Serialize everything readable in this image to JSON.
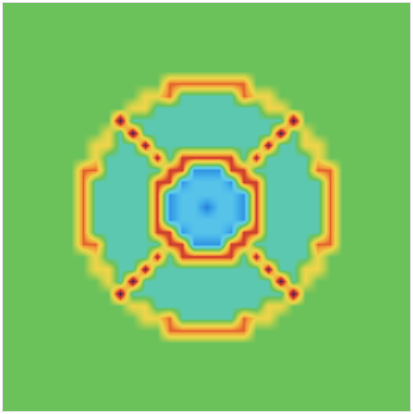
{
  "chart_data": {
    "type": "heatmap",
    "tick_labels": false,
    "xlim": [
      -0.5,
      32.5
    ],
    "ylim": [
      -0.5,
      32.5
    ],
    "zlim": [
      0,
      1
    ],
    "z": [
      [
        0.5,
        0.5,
        0.5,
        0.5,
        0.5,
        0.5,
        0.5,
        0.5,
        0.5,
        0.5,
        0.5,
        0.5,
        0.5,
        0.5,
        0.5,
        0.5,
        0.5,
        0.5,
        0.5,
        0.5,
        0.5,
        0.5,
        0.5,
        0.5,
        0.5,
        0.5,
        0.5,
        0.5,
        0.5,
        0.5,
        0.5,
        0.5,
        0.5
      ],
      [
        0.5,
        0.5,
        0.5,
        0.5,
        0.5,
        0.5,
        0.5,
        0.5,
        0.5,
        0.5,
        0.5,
        0.5,
        0.5,
        0.5,
        0.5,
        0.5,
        0.5,
        0.5,
        0.5,
        0.5,
        0.5,
        0.5,
        0.5,
        0.5,
        0.5,
        0.5,
        0.5,
        0.5,
        0.5,
        0.5,
        0.5,
        0.5,
        0.5
      ],
      [
        0.5,
        0.5,
        0.5,
        0.5,
        0.5,
        0.5,
        0.5,
        0.5,
        0.5,
        0.5,
        0.5,
        0.5,
        0.5,
        0.5,
        0.5,
        0.5,
        0.5,
        0.5,
        0.5,
        0.5,
        0.5,
        0.5,
        0.5,
        0.5,
        0.5,
        0.5,
        0.5,
        0.5,
        0.5,
        0.5,
        0.5,
        0.5,
        0.5
      ],
      [
        0.5,
        0.5,
        0.5,
        0.5,
        0.5,
        0.5,
        0.5,
        0.5,
        0.5,
        0.5,
        0.5,
        0.5,
        0.5,
        0.5,
        0.5,
        0.5,
        0.5,
        0.5,
        0.5,
        0.5,
        0.5,
        0.5,
        0.5,
        0.5,
        0.5,
        0.5,
        0.5,
        0.5,
        0.5,
        0.5,
        0.5,
        0.5,
        0.5
      ],
      [
        0.5,
        0.5,
        0.5,
        0.5,
        0.5,
        0.5,
        0.5,
        0.5,
        0.5,
        0.5,
        0.5,
        0.5,
        0.5,
        0.5,
        0.5,
        0.5,
        0.5,
        0.5,
        0.5,
        0.5,
        0.5,
        0.5,
        0.5,
        0.5,
        0.5,
        0.5,
        0.5,
        0.5,
        0.5,
        0.5,
        0.5,
        0.5,
        0.5
      ],
      [
        0.5,
        0.5,
        0.5,
        0.5,
        0.5,
        0.5,
        0.5,
        0.5,
        0.5,
        0.5,
        0.5,
        0.5,
        0.5,
        0.5,
        0.5,
        0.5,
        0.5,
        0.5,
        0.5,
        0.5,
        0.5,
        0.5,
        0.5,
        0.5,
        0.5,
        0.5,
        0.5,
        0.5,
        0.5,
        0.5,
        0.5,
        0.5,
        0.5
      ],
      [
        0.5,
        0.5,
        0.5,
        0.5,
        0.5,
        0.5,
        0.5,
        0.5,
        0.5,
        0.5,
        0.5,
        0.5,
        0.5,
        0.78,
        0.78,
        0.78,
        0.78,
        0.78,
        0.78,
        0.78,
        0.5,
        0.5,
        0.5,
        0.5,
        0.5,
        0.5,
        0.5,
        0.5,
        0.5,
        0.5,
        0.5,
        0.5,
        0.5
      ],
      [
        0.5,
        0.5,
        0.5,
        0.5,
        0.5,
        0.5,
        0.5,
        0.5,
        0.5,
        0.5,
        0.5,
        0.66,
        0.66,
        0.78,
        0.43,
        0.43,
        0.43,
        0.43,
        0.43,
        0.78,
        0.66,
        0.66,
        0.5,
        0.5,
        0.5,
        0.5,
        0.5,
        0.5,
        0.5,
        0.5,
        0.5,
        0.5,
        0.5
      ],
      [
        0.5,
        0.5,
        0.5,
        0.5,
        0.5,
        0.5,
        0.5,
        0.5,
        0.5,
        0.5,
        0.66,
        0.66,
        0.43,
        0.43,
        0.43,
        0.43,
        0.43,
        0.43,
        0.43,
        0.43,
        0.43,
        0.66,
        0.66,
        0.5,
        0.5,
        0.5,
        0.5,
        0.5,
        0.5,
        0.5,
        0.5,
        0.5,
        0.5
      ],
      [
        0.5,
        0.5,
        0.5,
        0.5,
        0.5,
        0.5,
        0.5,
        0.5,
        0.5,
        0.97,
        0.43,
        0.43,
        0.43,
        0.43,
        0.43,
        0.43,
        0.43,
        0.43,
        0.43,
        0.43,
        0.43,
        0.43,
        0.43,
        0.97,
        0.5,
        0.5,
        0.5,
        0.5,
        0.5,
        0.5,
        0.5,
        0.5,
        0.5
      ],
      [
        0.5,
        0.5,
        0.5,
        0.5,
        0.5,
        0.5,
        0.5,
        0.5,
        0.66,
        0.43,
        0.97,
        0.43,
        0.43,
        0.43,
        0.43,
        0.43,
        0.43,
        0.43,
        0.43,
        0.43,
        0.43,
        0.43,
        0.97,
        0.43,
        0.66,
        0.5,
        0.5,
        0.5,
        0.5,
        0.5,
        0.5,
        0.5,
        0.5
      ],
      [
        0.5,
        0.5,
        0.5,
        0.5,
        0.5,
        0.5,
        0.5,
        0.66,
        0.66,
        0.43,
        0.43,
        0.93,
        0.43,
        0.43,
        0.43,
        0.43,
        0.43,
        0.43,
        0.43,
        0.43,
        0.43,
        0.93,
        0.43,
        0.43,
        0.66,
        0.66,
        0.5,
        0.5,
        0.5,
        0.5,
        0.5,
        0.5,
        0.5
      ],
      [
        0.5,
        0.5,
        0.5,
        0.5,
        0.5,
        0.5,
        0.5,
        0.66,
        0.43,
        0.43,
        0.43,
        0.43,
        0.88,
        0.43,
        0.82,
        0.82,
        0.82,
        0.82,
        0.82,
        0.43,
        0.88,
        0.43,
        0.43,
        0.43,
        0.43,
        0.66,
        0.5,
        0.5,
        0.5,
        0.5,
        0.5,
        0.5,
        0.5
      ],
      [
        0.5,
        0.5,
        0.5,
        0.5,
        0.5,
        0.5,
        0.78,
        0.78,
        0.43,
        0.43,
        0.43,
        0.43,
        0.43,
        0.82,
        0.82,
        0.24,
        0.24,
        0.24,
        0.82,
        0.82,
        0.43,
        0.43,
        0.43,
        0.43,
        0.43,
        0.78,
        0.78,
        0.5,
        0.5,
        0.5,
        0.5,
        0.5,
        0.5
      ],
      [
        0.5,
        0.5,
        0.5,
        0.5,
        0.5,
        0.5,
        0.78,
        0.43,
        0.43,
        0.43,
        0.43,
        0.43,
        0.82,
        0.82,
        0.24,
        0.33,
        0.33,
        0.33,
        0.24,
        0.82,
        0.82,
        0.43,
        0.43,
        0.43,
        0.43,
        0.43,
        0.78,
        0.5,
        0.5,
        0.5,
        0.5,
        0.5,
        0.5
      ],
      [
        0.5,
        0.5,
        0.5,
        0.5,
        0.5,
        0.5,
        0.78,
        0.43,
        0.43,
        0.43,
        0.43,
        0.43,
        0.82,
        0.24,
        0.33,
        0.33,
        0.33,
        0.33,
        0.33,
        0.24,
        0.82,
        0.43,
        0.43,
        0.43,
        0.43,
        0.43,
        0.78,
        0.5,
        0.5,
        0.5,
        0.5,
        0.5,
        0.5
      ],
      [
        0.5,
        0.5,
        0.5,
        0.5,
        0.5,
        0.5,
        0.78,
        0.43,
        0.43,
        0.43,
        0.43,
        0.43,
        0.82,
        0.24,
        0.33,
        0.33,
        0.2,
        0.33,
        0.33,
        0.24,
        0.82,
        0.43,
        0.43,
        0.43,
        0.43,
        0.43,
        0.78,
        0.5,
        0.5,
        0.5,
        0.5,
        0.5,
        0.5
      ],
      [
        0.5,
        0.5,
        0.5,
        0.5,
        0.5,
        0.5,
        0.78,
        0.43,
        0.43,
        0.43,
        0.43,
        0.43,
        0.82,
        0.24,
        0.33,
        0.33,
        0.33,
        0.33,
        0.33,
        0.24,
        0.82,
        0.43,
        0.43,
        0.43,
        0.43,
        0.43,
        0.78,
        0.5,
        0.5,
        0.5,
        0.5,
        0.5,
        0.5
      ],
      [
        0.5,
        0.5,
        0.5,
        0.5,
        0.5,
        0.5,
        0.78,
        0.43,
        0.43,
        0.43,
        0.43,
        0.43,
        0.82,
        0.82,
        0.24,
        0.33,
        0.33,
        0.33,
        0.24,
        0.82,
        0.82,
        0.43,
        0.43,
        0.43,
        0.43,
        0.43,
        0.78,
        0.5,
        0.5,
        0.5,
        0.5,
        0.5,
        0.5
      ],
      [
        0.5,
        0.5,
        0.5,
        0.5,
        0.5,
        0.5,
        0.78,
        0.78,
        0.43,
        0.43,
        0.43,
        0.43,
        0.43,
        0.82,
        0.82,
        0.24,
        0.24,
        0.24,
        0.82,
        0.82,
        0.43,
        0.43,
        0.43,
        0.43,
        0.43,
        0.78,
        0.78,
        0.5,
        0.5,
        0.5,
        0.5,
        0.5,
        0.5
      ],
      [
        0.5,
        0.5,
        0.5,
        0.5,
        0.5,
        0.5,
        0.5,
        0.66,
        0.43,
        0.43,
        0.43,
        0.43,
        0.88,
        0.43,
        0.82,
        0.82,
        0.82,
        0.82,
        0.82,
        0.43,
        0.88,
        0.43,
        0.43,
        0.43,
        0.43,
        0.66,
        0.5,
        0.5,
        0.5,
        0.5,
        0.5,
        0.5,
        0.5
      ],
      [
        0.5,
        0.5,
        0.5,
        0.5,
        0.5,
        0.5,
        0.5,
        0.66,
        0.66,
        0.43,
        0.43,
        0.93,
        0.43,
        0.43,
        0.43,
        0.43,
        0.43,
        0.43,
        0.43,
        0.43,
        0.43,
        0.93,
        0.43,
        0.43,
        0.66,
        0.66,
        0.5,
        0.5,
        0.5,
        0.5,
        0.5,
        0.5,
        0.5
      ],
      [
        0.5,
        0.5,
        0.5,
        0.5,
        0.5,
        0.5,
        0.5,
        0.5,
        0.66,
        0.43,
        0.97,
        0.43,
        0.43,
        0.43,
        0.43,
        0.43,
        0.43,
        0.43,
        0.43,
        0.43,
        0.43,
        0.43,
        0.97,
        0.43,
        0.66,
        0.5,
        0.5,
        0.5,
        0.5,
        0.5,
        0.5,
        0.5,
        0.5
      ],
      [
        0.5,
        0.5,
        0.5,
        0.5,
        0.5,
        0.5,
        0.5,
        0.5,
        0.5,
        0.97,
        0.43,
        0.43,
        0.43,
        0.43,
        0.43,
        0.43,
        0.43,
        0.43,
        0.43,
        0.43,
        0.43,
        0.43,
        0.43,
        0.97,
        0.5,
        0.5,
        0.5,
        0.5,
        0.5,
        0.5,
        0.5,
        0.5,
        0.5
      ],
      [
        0.5,
        0.5,
        0.5,
        0.5,
        0.5,
        0.5,
        0.5,
        0.5,
        0.5,
        0.5,
        0.66,
        0.66,
        0.43,
        0.43,
        0.43,
        0.43,
        0.43,
        0.43,
        0.43,
        0.43,
        0.43,
        0.66,
        0.66,
        0.5,
        0.5,
        0.5,
        0.5,
        0.5,
        0.5,
        0.5,
        0.5,
        0.5,
        0.5
      ],
      [
        0.5,
        0.5,
        0.5,
        0.5,
        0.5,
        0.5,
        0.5,
        0.5,
        0.5,
        0.5,
        0.5,
        0.66,
        0.66,
        0.78,
        0.43,
        0.43,
        0.43,
        0.43,
        0.43,
        0.78,
        0.66,
        0.66,
        0.5,
        0.5,
        0.5,
        0.5,
        0.5,
        0.5,
        0.5,
        0.5,
        0.5,
        0.5,
        0.5
      ],
      [
        0.5,
        0.5,
        0.5,
        0.5,
        0.5,
        0.5,
        0.5,
        0.5,
        0.5,
        0.5,
        0.5,
        0.5,
        0.5,
        0.78,
        0.78,
        0.78,
        0.78,
        0.78,
        0.78,
        0.78,
        0.5,
        0.5,
        0.5,
        0.5,
        0.5,
        0.5,
        0.5,
        0.5,
        0.5,
        0.5,
        0.5,
        0.5,
        0.5
      ],
      [
        0.5,
        0.5,
        0.5,
        0.5,
        0.5,
        0.5,
        0.5,
        0.5,
        0.5,
        0.5,
        0.5,
        0.5,
        0.5,
        0.5,
        0.5,
        0.5,
        0.5,
        0.5,
        0.5,
        0.5,
        0.5,
        0.5,
        0.5,
        0.5,
        0.5,
        0.5,
        0.5,
        0.5,
        0.5,
        0.5,
        0.5,
        0.5,
        0.5
      ],
      [
        0.5,
        0.5,
        0.5,
        0.5,
        0.5,
        0.5,
        0.5,
        0.5,
        0.5,
        0.5,
        0.5,
        0.5,
        0.5,
        0.5,
        0.5,
        0.5,
        0.5,
        0.5,
        0.5,
        0.5,
        0.5,
        0.5,
        0.5,
        0.5,
        0.5,
        0.5,
        0.5,
        0.5,
        0.5,
        0.5,
        0.5,
        0.5,
        0.5
      ],
      [
        0.5,
        0.5,
        0.5,
        0.5,
        0.5,
        0.5,
        0.5,
        0.5,
        0.5,
        0.5,
        0.5,
        0.5,
        0.5,
        0.5,
        0.5,
        0.5,
        0.5,
        0.5,
        0.5,
        0.5,
        0.5,
        0.5,
        0.5,
        0.5,
        0.5,
        0.5,
        0.5,
        0.5,
        0.5,
        0.5,
        0.5,
        0.5,
        0.5
      ],
      [
        0.5,
        0.5,
        0.5,
        0.5,
        0.5,
        0.5,
        0.5,
        0.5,
        0.5,
        0.5,
        0.5,
        0.5,
        0.5,
        0.5,
        0.5,
        0.5,
        0.5,
        0.5,
        0.5,
        0.5,
        0.5,
        0.5,
        0.5,
        0.5,
        0.5,
        0.5,
        0.5,
        0.5,
        0.5,
        0.5,
        0.5,
        0.5,
        0.5
      ],
      [
        0.5,
        0.5,
        0.5,
        0.5,
        0.5,
        0.5,
        0.5,
        0.5,
        0.5,
        0.5,
        0.5,
        0.5,
        0.5,
        0.5,
        0.5,
        0.5,
        0.5,
        0.5,
        0.5,
        0.5,
        0.5,
        0.5,
        0.5,
        0.5,
        0.5,
        0.5,
        0.5,
        0.5,
        0.5,
        0.5,
        0.5,
        0.5,
        0.5
      ],
      [
        0.5,
        0.5,
        0.5,
        0.5,
        0.5,
        0.5,
        0.5,
        0.5,
        0.5,
        0.5,
        0.5,
        0.5,
        0.5,
        0.5,
        0.5,
        0.5,
        0.5,
        0.5,
        0.5,
        0.5,
        0.5,
        0.5,
        0.5,
        0.5,
        0.5,
        0.5,
        0.5,
        0.5,
        0.5,
        0.5,
        0.5,
        0.5,
        0.5
      ]
    ]
  }
}
